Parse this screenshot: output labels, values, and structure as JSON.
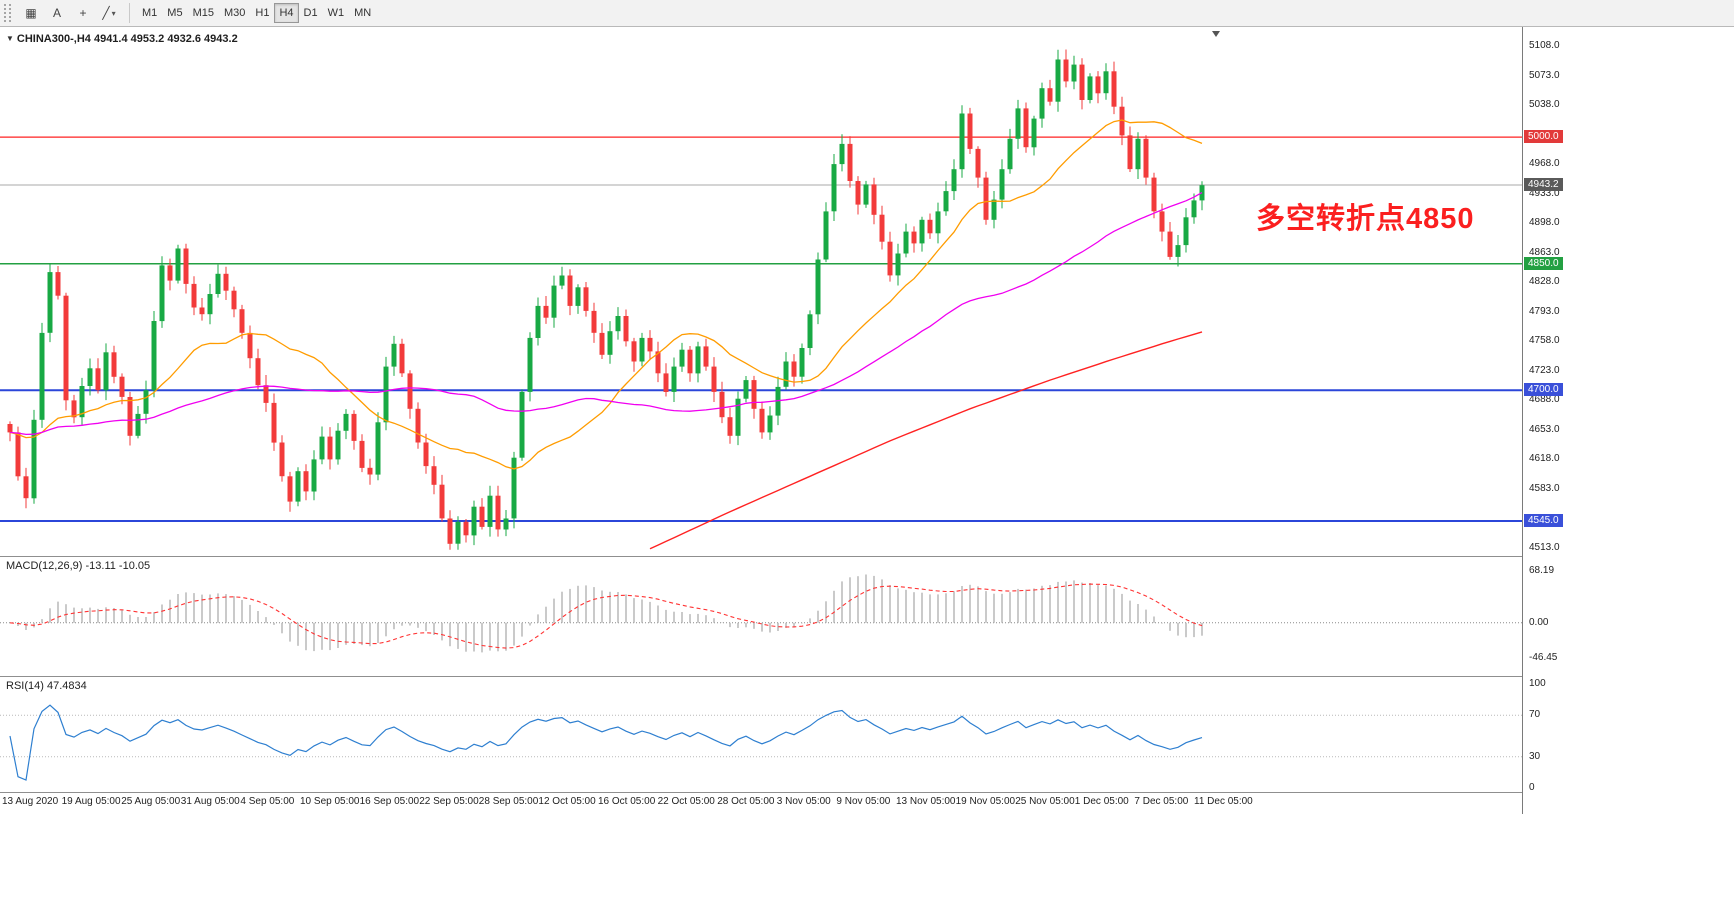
{
  "toolbar": {
    "icons": {
      "grid": "▦",
      "text": "A",
      "crosshair": "+",
      "draw": "╱",
      "caret": "▾"
    },
    "timeframes": [
      "M1",
      "M5",
      "M15",
      "M30",
      "H1",
      "H4",
      "D1",
      "W1",
      "MN"
    ],
    "active_timeframe": "H4"
  },
  "chart": {
    "collapse_icon": "▼",
    "title_symbol": "CHINA300-,H4",
    "title_ohlc": "4941.4 4953.2 4932.6 4943.2",
    "annotation": "多空转折点4850",
    "annotation_color": "#fb1f1f",
    "price_ticks": [
      "5108.0",
      "5073.0",
      "5038.0",
      "4968.0",
      "4933.0",
      "4898.0",
      "4863.0",
      "4828.0",
      "4793.0",
      "4758.0",
      "4723.0",
      "4688.0",
      "4653.0",
      "4618.0",
      "4583.0",
      "4513.0"
    ],
    "price_badges": [
      {
        "label": "5000.0",
        "value": 5000,
        "color": "#e23a3a"
      },
      {
        "label": "4943.2",
        "value": 4943.2,
        "color": "#5a5a5a"
      },
      {
        "label": "4850.0",
        "value": 4850,
        "color": "#23a042"
      },
      {
        "label": "4700.0",
        "value": 4700,
        "color": "#3a50d9"
      },
      {
        "label": "4545.0",
        "value": 4545,
        "color": "#3a50d9"
      }
    ],
    "time_labels": [
      "13 Aug 2020",
      "19 Aug 05:00",
      "25 Aug 05:00",
      "31 Aug 05:00",
      "4 Sep 05:00",
      "10 Sep 05:00",
      "16 Sep 05:00",
      "22 Sep 05:00",
      "28 Sep 05:00",
      "12 Oct 05:00",
      "16 Oct 05:00",
      "22 Oct 05:00",
      "28 Oct 05:00",
      "3 Nov 05:00",
      "9 Nov 05:00",
      "13 Nov 05:00",
      "19 Nov 05:00",
      "25 Nov 05:00",
      "1 Dec 05:00",
      "7 Dec 05:00",
      "11 Dec 05:00"
    ]
  },
  "chart_data": {
    "type": "candlestick",
    "symbol": "CHINA300-",
    "timeframe": "H4",
    "ohlc_last": {
      "open": 4941.4,
      "high": 4953.2,
      "low": 4932.6,
      "close": 4943.2
    },
    "y_axis": {
      "max": 5108,
      "min": 4513,
      "tick_step": 35
    },
    "x_axis_labels": [
      "13 Aug 2020",
      "19 Aug 05:00",
      "25 Aug 05:00",
      "31 Aug 05:00",
      "4 Sep 05:00",
      "10 Sep 05:00",
      "16 Sep 05:00",
      "22 Sep 05:00",
      "28 Sep 05:00",
      "12 Oct 05:00",
      "16 Oct 05:00",
      "22 Oct 05:00",
      "28 Oct 05:00",
      "3 Nov 05:00",
      "9 Nov 05:00",
      "13 Nov 05:00",
      "19 Nov 05:00",
      "25 Nov 05:00",
      "1 Dec 05:00",
      "7 Dec 05:00",
      "11 Dec 05:00"
    ],
    "closes": [
      4650,
      4598,
      4572,
      4665,
      4768,
      4840,
      4812,
      4688,
      4668,
      4705,
      4726,
      4700,
      4745,
      4716,
      4692,
      4646,
      4672,
      4700,
      4782,
      4848,
      4830,
      4868,
      4826,
      4798,
      4790,
      4814,
      4838,
      4818,
      4796,
      4768,
      4738,
      4706,
      4685,
      4638,
      4598,
      4568,
      4604,
      4580,
      4618,
      4645,
      4618,
      4652,
      4672,
      4640,
      4608,
      4600,
      4662,
      4728,
      4755,
      4720,
      4678,
      4638,
      4610,
      4588,
      4548,
      4518,
      4544,
      4528,
      4562,
      4538,
      4575,
      4535,
      4548,
      4620,
      4698,
      4762,
      4800,
      4786,
      4824,
      4836,
      4800,
      4822,
      4794,
      4768,
      4742,
      4770,
      4788,
      4758,
      4734,
      4762,
      4746,
      4720,
      4698,
      4728,
      4748,
      4720,
      4752,
      4728,
      4698,
      4668,
      4646,
      4690,
      4712,
      4678,
      4650,
      4670,
      4704,
      4734,
      4716,
      4750,
      4790,
      4855,
      4912,
      4968,
      4992,
      4948,
      4920,
      4944,
      4908,
      4876,
      4836,
      4862,
      4888,
      4874,
      4902,
      4886,
      4912,
      4936,
      4962,
      5028,
      4986,
      4952,
      4902,
      4926,
      4962,
      4998,
      5034,
      4988,
      5022,
      5058,
      5042,
      5092,
      5066,
      5086,
      5044,
      5072,
      5052,
      5078,
      5036,
      5002,
      4962,
      4998,
      4952,
      4912,
      4888,
      4858,
      4872,
      4905,
      4925,
      4943
    ],
    "horizontal_lines": [
      {
        "value": 5000,
        "color": "#ff2222",
        "width": 1.2,
        "label": "5000.0"
      },
      {
        "value": 4943.2,
        "color": "#a8a8a8",
        "width": 1,
        "label": "4943.2"
      },
      {
        "value": 4850,
        "color": "#23a042",
        "width": 1.5,
        "label": "4850.0"
      },
      {
        "value": 4700,
        "color": "#2b46d9",
        "width": 2,
        "label": "4700.0"
      },
      {
        "value": 4545,
        "color": "#2b46d9",
        "width": 2,
        "label": "4545.0"
      }
    ],
    "moving_averages": [
      {
        "name": "ma-fast",
        "color": "#ff9c00",
        "period": 21
      },
      {
        "name": "ma-medium",
        "color": "#f000f0",
        "period": 55
      },
      {
        "name": "ma-slow",
        "color": "#ff2222",
        "points": [
          [
            80,
            4512
          ],
          [
            90,
            4556
          ],
          [
            100,
            4598
          ],
          [
            110,
            4640
          ],
          [
            120,
            4678
          ],
          [
            130,
            4712
          ],
          [
            138,
            4737
          ],
          [
            144,
            4755
          ],
          [
            150,
            4772
          ]
        ]
      }
    ],
    "candle_colors": {
      "up": "#18a944",
      "down": "#f23b3b"
    },
    "annotations": [
      {
        "text": "多空转折点4850",
        "color": "#fb1f1f"
      }
    ]
  },
  "indicators": {
    "macd": {
      "name": "MACD(12,26,9)",
      "values_text": "-13.11 -10.05",
      "axis_labels": [
        {
          "v": 68.19,
          "label": "68.19"
        },
        {
          "v": 0,
          "label": "0.00"
        },
        {
          "v": -46.45,
          "label": "-46.45"
        }
      ],
      "histogram_color": "#b3b3b3",
      "signal_color": "#ff3333"
    },
    "rsi": {
      "name": "RSI(14)",
      "value_text": "47.4834",
      "axis_labels": [
        {
          "v": 100,
          "label": "100"
        },
        {
          "v": 70,
          "label": "70"
        },
        {
          "v": 30,
          "label": "30"
        },
        {
          "v": 0,
          "label": "0"
        }
      ],
      "levels": [
        70,
        30
      ],
      "line_color": "#2e7fd0"
    }
  }
}
